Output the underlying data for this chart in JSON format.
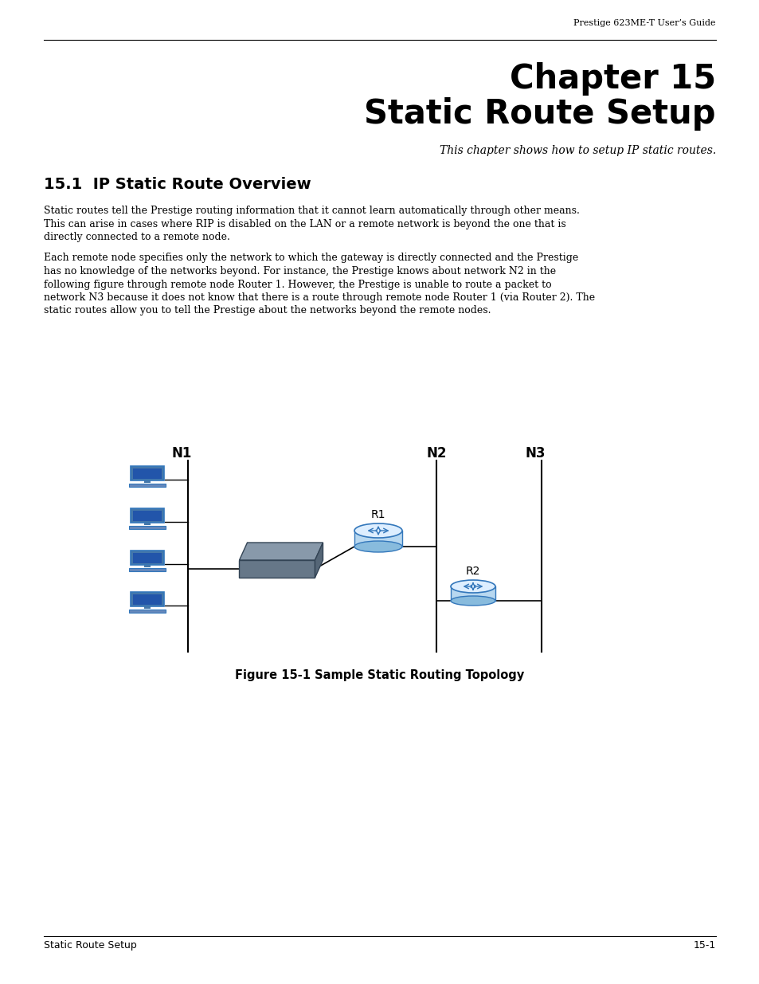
{
  "bg_color": "#ffffff",
  "header_text": "Prestige 623ME-T User’s Guide",
  "chapter_title_line1": "Chapter 15",
  "chapter_title_line2": "Static Route Setup",
  "subtitle": "This chapter shows how to setup IP static routes.",
  "section_title": "15.1  IP Static Route Overview",
  "para1_lines": [
    "Static routes tell the Prestige routing information that it cannot learn automatically through other means.",
    "This can arise in cases where RIP is disabled on the LAN or a remote network is beyond the one that is",
    "directly connected to a remote node."
  ],
  "para2_lines": [
    "Each remote node specifies only the network to which the gateway is directly connected and the Prestige",
    "has no knowledge of the networks beyond. For instance, the Prestige knows about network N2 in the",
    "following figure through remote node Router 1. However, the Prestige is unable to route a packet to",
    "network N3 because it does not know that there is a route through remote node Router 1 (via Router 2). The",
    "static routes allow you to tell the Prestige about the networks beyond the remote nodes."
  ],
  "figure_caption": "Figure 15-1 Sample Static Routing Topology",
  "footer_left": "Static Route Setup",
  "footer_right": "15-1",
  "n1_label": "N1",
  "n2_label": "N2",
  "n3_label": "N3",
  "r1_label": "R1",
  "r2_label": "R2",
  "line_color": "#000000",
  "router_face_color": "#b8d8f0",
  "router_edge_color": "#3377bb",
  "router_top_color": "#ddeeff",
  "router_bottom_color": "#88bbdd",
  "switch_top_color": "#8899aa",
  "switch_side_color": "#667788",
  "comp_body_color": "#4477aa",
  "comp_screen_color": "#2255aa",
  "comp_base_color": "#6688bb"
}
